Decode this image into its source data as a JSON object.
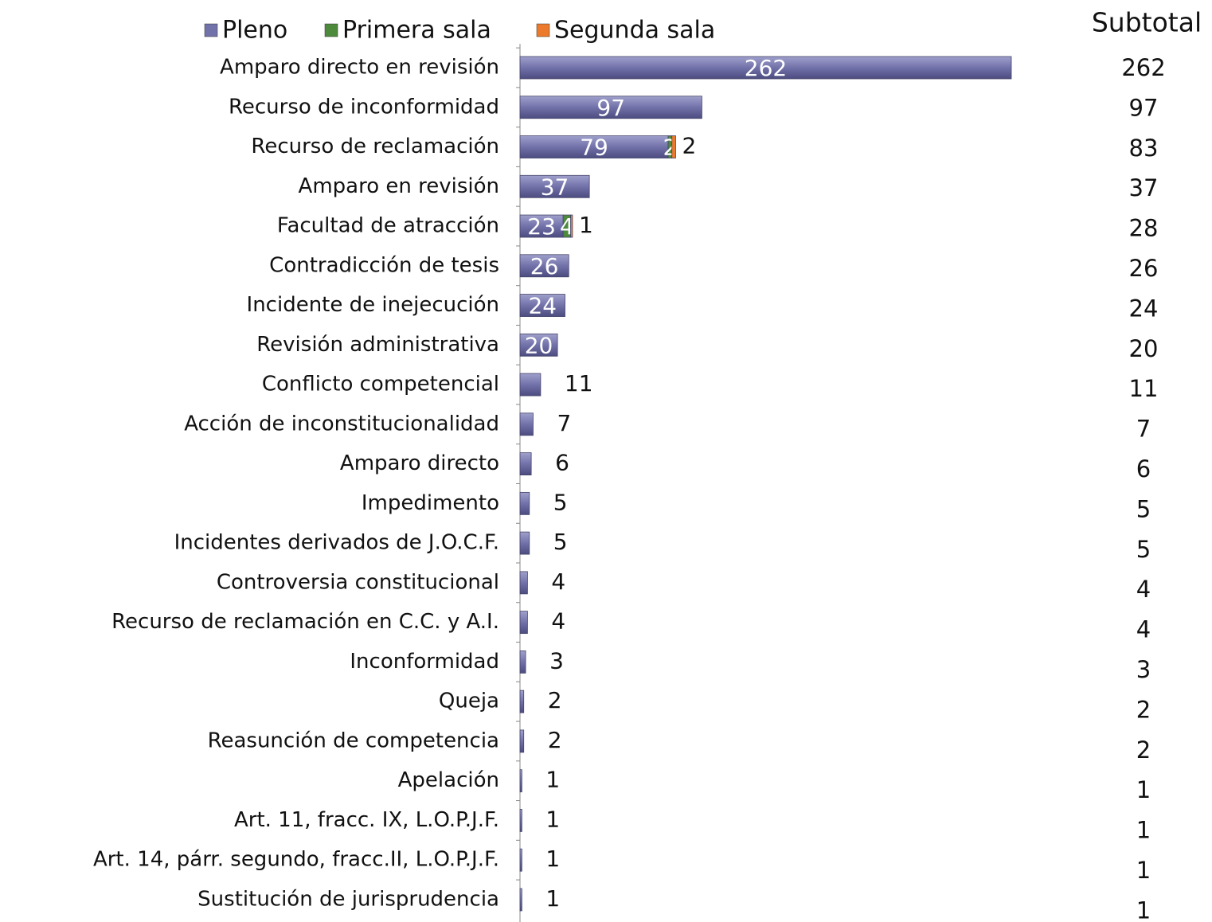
{
  "chart_data": {
    "type": "bar",
    "orientation": "horizontal",
    "stacked": true,
    "categories": [
      "Amparo directo en revisión",
      "Recurso de inconformidad",
      "Recurso de reclamación",
      "Amparo en revisión",
      "Facultad de atracción",
      "Contradicción de tesis",
      "Incidente de inejecución",
      "Revisión administrativa",
      "Conflicto competencial",
      "Acción de inconstitucionalidad",
      "Amparo directo",
      "Impedimento",
      "Incidentes derivados de J.O.C.F.",
      "Controversia constitucional",
      "Recurso de reclamación en C.C. y A.I.",
      "Inconformidad",
      "Queja",
      "Reasunción de competencia",
      "Apelación",
      "Art. 11, fracc. IX, L.O.P.J.F.",
      "Art. 14, párr. segundo, fracc.II, L.O.P.J.F.",
      "Sustitución de jurisprudencia"
    ],
    "series": [
      {
        "name": "Pleno",
        "color": "#7272aa",
        "values": [
          262,
          97,
          79,
          37,
          23,
          26,
          24,
          20,
          11,
          7,
          6,
          5,
          5,
          4,
          4,
          3,
          2,
          2,
          1,
          1,
          1,
          1
        ]
      },
      {
        "name": "Primera sala",
        "color": "#4e8a3c",
        "values": [
          null,
          null,
          2,
          null,
          4,
          null,
          null,
          null,
          null,
          null,
          null,
          null,
          null,
          null,
          null,
          null,
          null,
          null,
          null,
          null,
          null,
          null
        ]
      },
      {
        "name": "Segunda sala",
        "color": "#ec7a2c",
        "values": [
          null,
          null,
          2,
          null,
          1,
          null,
          null,
          null,
          null,
          null,
          null,
          null,
          null,
          null,
          null,
          null,
          null,
          null,
          null,
          null,
          null,
          null
        ]
      }
    ],
    "subtotal_title": "Subtotal",
    "subtotals": [
      262,
      97,
      83,
      37,
      28,
      26,
      24,
      20,
      11,
      7,
      6,
      5,
      5,
      4,
      4,
      3,
      2,
      2,
      1,
      1,
      1,
      1
    ],
    "xlim": [
      0,
      262
    ],
    "legend": "top"
  }
}
